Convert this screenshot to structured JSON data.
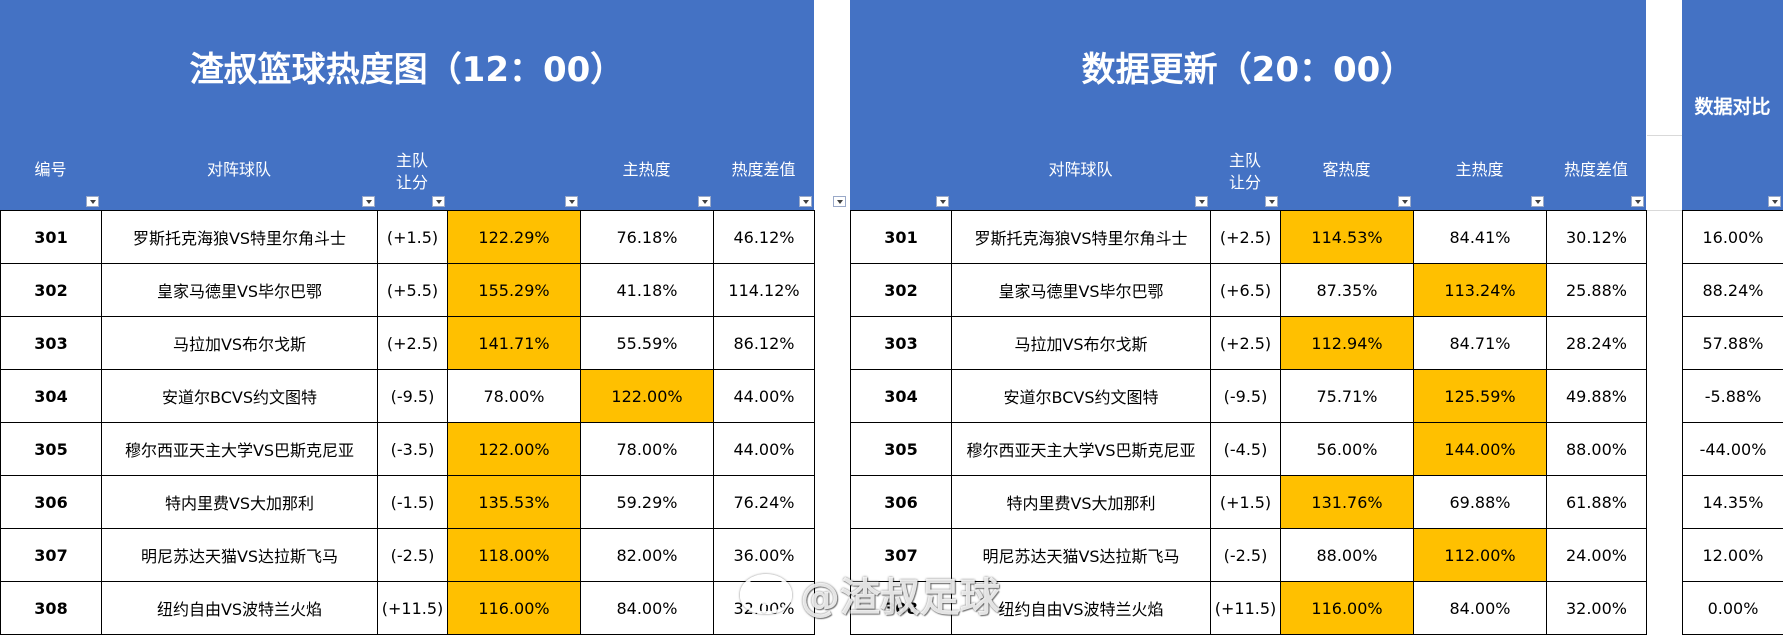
{
  "left_panel": {
    "title": "渣叔篮球热度图（12：00）",
    "headers": {
      "id": "编号",
      "match": "对阵球队",
      "handicap": "主队\n让分",
      "away": "",
      "home": "主热度",
      "diff": "热度差值"
    },
    "rows": [
      {
        "id": "301",
        "match": "罗斯托克海狼VS特里尔角斗士",
        "handicap": "(+1.5)",
        "away": "122.29%",
        "home": "76.18%",
        "diff": "46.12%",
        "hl": "away"
      },
      {
        "id": "302",
        "match": "皇家马德里VS毕尔巴鄂",
        "handicap": "(+5.5)",
        "away": "155.29%",
        "home": "41.18%",
        "diff": "114.12%",
        "hl": "away"
      },
      {
        "id": "303",
        "match": "马拉加VS布尔戈斯",
        "handicap": "(+2.5)",
        "away": "141.71%",
        "home": "55.59%",
        "diff": "86.12%",
        "hl": "away"
      },
      {
        "id": "304",
        "match": "安道尔BCVS约文图特",
        "handicap": "(-9.5)",
        "away": "78.00%",
        "home": "122.00%",
        "diff": "44.00%",
        "hl": "home"
      },
      {
        "id": "305",
        "match": "穆尔西亚天主大学VS巴斯克尼亚",
        "handicap": "(-3.5)",
        "away": "122.00%",
        "home": "78.00%",
        "diff": "44.00%",
        "hl": "away"
      },
      {
        "id": "306",
        "match": "特内里费VS大加那利",
        "handicap": "(-1.5)",
        "away": "135.53%",
        "home": "59.29%",
        "diff": "76.24%",
        "hl": "away"
      },
      {
        "id": "307",
        "match": "明尼苏达天猫VS达拉斯飞马",
        "handicap": "(-2.5)",
        "away": "118.00%",
        "home": "82.00%",
        "diff": "36.00%",
        "hl": "away"
      },
      {
        "id": "308",
        "match": "纽约自由VS波特兰火焰",
        "handicap": "(+11.5)",
        "away": "116.00%",
        "home": "84.00%",
        "diff": "32.00%",
        "hl": "away"
      }
    ]
  },
  "right_panel": {
    "title": "数据更新（20：00）",
    "headers": {
      "id": "",
      "match": "对阵球队",
      "handicap": "主队\n让分",
      "away": "客热度",
      "home": "主热度",
      "diff": "热度差值"
    },
    "rows": [
      {
        "id": "301",
        "match": "罗斯托克海狼VS特里尔角斗士",
        "handicap": "(+2.5)",
        "away": "114.53%",
        "home": "84.41%",
        "diff": "30.12%",
        "hl": "away"
      },
      {
        "id": "302",
        "match": "皇家马德里VS毕尔巴鄂",
        "handicap": "(+6.5)",
        "away": "87.35%",
        "home": "113.24%",
        "diff": "25.88%",
        "hl": "home"
      },
      {
        "id": "303",
        "match": "马拉加VS布尔戈斯",
        "handicap": "(+2.5)",
        "away": "112.94%",
        "home": "84.71%",
        "diff": "28.24%",
        "hl": "away"
      },
      {
        "id": "304",
        "match": "安道尔BCVS约文图特",
        "handicap": "(-9.5)",
        "away": "75.71%",
        "home": "125.59%",
        "diff": "49.88%",
        "hl": "home"
      },
      {
        "id": "305",
        "match": "穆尔西亚天主大学VS巴斯克尼亚",
        "handicap": "(-4.5)",
        "away": "56.00%",
        "home": "144.00%",
        "diff": "88.00%",
        "hl": "home"
      },
      {
        "id": "306",
        "match": "特内里费VS大加那利",
        "handicap": "(+1.5)",
        "away": "131.76%",
        "home": "69.88%",
        "diff": "61.88%",
        "hl": "away"
      },
      {
        "id": "307",
        "match": "明尼苏达天猫VS达拉斯飞马",
        "handicap": "(-2.5)",
        "away": "88.00%",
        "home": "112.00%",
        "diff": "24.00%",
        "hl": "home"
      },
      {
        "id": "308",
        "match": "纽约自由VS波特兰火焰",
        "handicap": "(+11.5)",
        "away": "116.00%",
        "home": "84.00%",
        "diff": "32.00%",
        "hl": "away"
      }
    ]
  },
  "compare_panel": {
    "title": "数据对比",
    "values": [
      "16.00%",
      "88.24%",
      "57.88%",
      "-5.88%",
      "-44.00%",
      "14.35%",
      "12.00%",
      "0.00%"
    ]
  },
  "watermark": {
    "text": "@渣叔足球",
    "icon": "weibo-icon"
  },
  "colors": {
    "header_bg": "#4472c4",
    "highlight": "#ffc000",
    "border": "#000000",
    "text_on_header": "#ffffff"
  }
}
